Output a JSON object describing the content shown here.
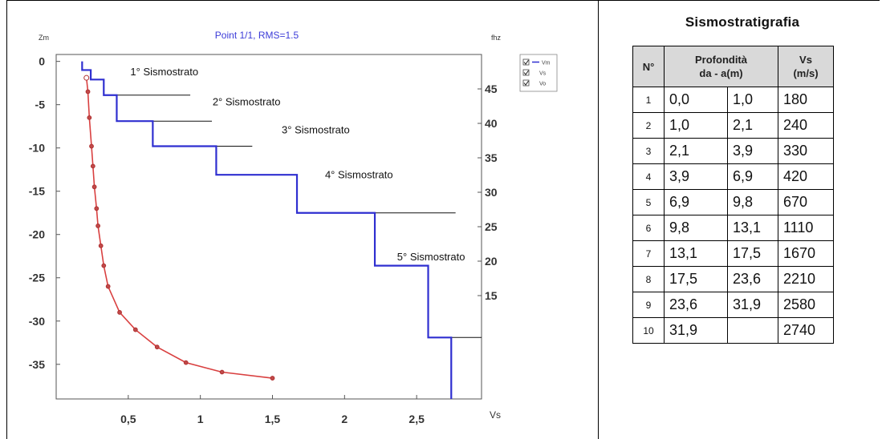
{
  "chart_data": {
    "type": "line",
    "title": "Point 1/1, RMS=1.5",
    "ylabel": "Zm",
    "y2label": "fhz",
    "xlabel": "Vs",
    "xlim": [
      0,
      2.95
    ],
    "ylim": [
      -39,
      0.8
    ],
    "y2lim": [
      0,
      50
    ],
    "x_ticks": [
      "0,5",
      "1",
      "1,5",
      "2",
      "2,5"
    ],
    "x_tick_values": [
      0.5,
      1,
      1.5,
      2,
      2.5
    ],
    "y_ticks": [
      "0",
      "-5",
      "-10",
      "-15",
      "-20",
      "-25",
      "-30",
      "-35"
    ],
    "y_tick_values": [
      0,
      -5,
      -10,
      -15,
      -20,
      -25,
      -30,
      -35
    ],
    "y2_ticks": [
      "45",
      "40",
      "35",
      "30",
      "25",
      "20",
      "15"
    ],
    "y2_tick_values": [
      45,
      40,
      35,
      30,
      25,
      20,
      15
    ],
    "legend": [
      "Vm",
      "Vs",
      "Vo"
    ],
    "series": [
      {
        "name": "Vm",
        "color": "#2f2fd0",
        "kind": "step-profile",
        "points": [
          [
            0.18,
            0
          ],
          [
            0.18,
            -1.0
          ],
          [
            0.24,
            -1.0
          ],
          [
            0.24,
            -2.1
          ],
          [
            0.33,
            -2.1
          ],
          [
            0.33,
            -3.9
          ],
          [
            0.42,
            -3.9
          ],
          [
            0.42,
            -6.9
          ],
          [
            0.67,
            -6.9
          ],
          [
            0.67,
            -9.8
          ],
          [
            1.11,
            -9.8
          ],
          [
            1.11,
            -13.1
          ],
          [
            1.67,
            -13.1
          ],
          [
            1.67,
            -17.5
          ],
          [
            2.21,
            -17.5
          ],
          [
            2.21,
            -23.6
          ],
          [
            2.58,
            -23.6
          ],
          [
            2.58,
            -31.9
          ],
          [
            2.74,
            -31.9
          ],
          [
            2.74,
            -39
          ]
        ]
      },
      {
        "name": "Vs",
        "color": "#d94040",
        "kind": "curve-points",
        "points": [
          [
            0.21,
            -1.9
          ],
          [
            0.22,
            -3.5
          ],
          [
            0.23,
            -6.5
          ],
          [
            0.245,
            -9.8
          ],
          [
            0.255,
            -12.1
          ],
          [
            0.265,
            -14.5
          ],
          [
            0.28,
            -17.0
          ],
          [
            0.29,
            -19.0
          ],
          [
            0.31,
            -21.3
          ],
          [
            0.33,
            -23.6
          ],
          [
            0.36,
            -26.0
          ],
          [
            0.44,
            -29.0
          ],
          [
            0.55,
            -31.0
          ],
          [
            0.7,
            -33.0
          ],
          [
            0.9,
            -34.8
          ],
          [
            1.15,
            -35.9
          ],
          [
            1.5,
            -36.6
          ]
        ]
      }
    ],
    "layer_labels": [
      {
        "text": "1° Sismostrato",
        "x": 0.75,
        "y": -1.6
      },
      {
        "text": "2° Sismostrato",
        "x": 1.32,
        "y": -5.1
      },
      {
        "text": "3° Sismostrato",
        "x": 1.8,
        "y": -8.3
      },
      {
        "text": "4° Sismostrato",
        "x": 2.1,
        "y": -13.5
      },
      {
        "text": "5° Sismostrato",
        "x": 2.6,
        "y": -23.0
      }
    ],
    "boundary_lines": [
      {
        "x0": 0.33,
        "x1": 0.93,
        "y": -3.9
      },
      {
        "x0": 0.42,
        "x1": 1.08,
        "y": -6.9
      },
      {
        "x0": 0.67,
        "x1": 1.36,
        "y": -9.8
      },
      {
        "x0": 1.67,
        "x1": 2.77,
        "y": -17.5
      },
      {
        "x0": 2.58,
        "x1": 2.95,
        "y": -31.9
      }
    ],
    "grid": false
  },
  "table": {
    "title": "Sismostratigrafia",
    "headers": {
      "n": "N°",
      "depth_line1": "Profondità",
      "depth_line2": "da - a(m)",
      "vs_line1": "Vs",
      "vs_line2": "(m/s)"
    },
    "rows": [
      {
        "n": "1",
        "from": "0,0",
        "to": "1,0",
        "vs": "180"
      },
      {
        "n": "2",
        "from": "1,0",
        "to": "2,1",
        "vs": "240"
      },
      {
        "n": "3",
        "from": "2,1",
        "to": "3,9",
        "vs": "330"
      },
      {
        "n": "4",
        "from": "3,9",
        "to": "6,9",
        "vs": "420"
      },
      {
        "n": "5",
        "from": "6,9",
        "to": "9,8",
        "vs": "670"
      },
      {
        "n": "6",
        "from": "9,8",
        "to": "13,1",
        "vs": "1110"
      },
      {
        "n": "7",
        "from": "13,1",
        "to": "17,5",
        "vs": "1670"
      },
      {
        "n": "8",
        "from": "17,5",
        "to": "23,6",
        "vs": "2210"
      },
      {
        "n": "9",
        "from": "23,6",
        "to": "31,9",
        "vs": "2580"
      },
      {
        "n": "10",
        "from": "31,9",
        "to": "",
        "vs": "2740"
      }
    ]
  }
}
